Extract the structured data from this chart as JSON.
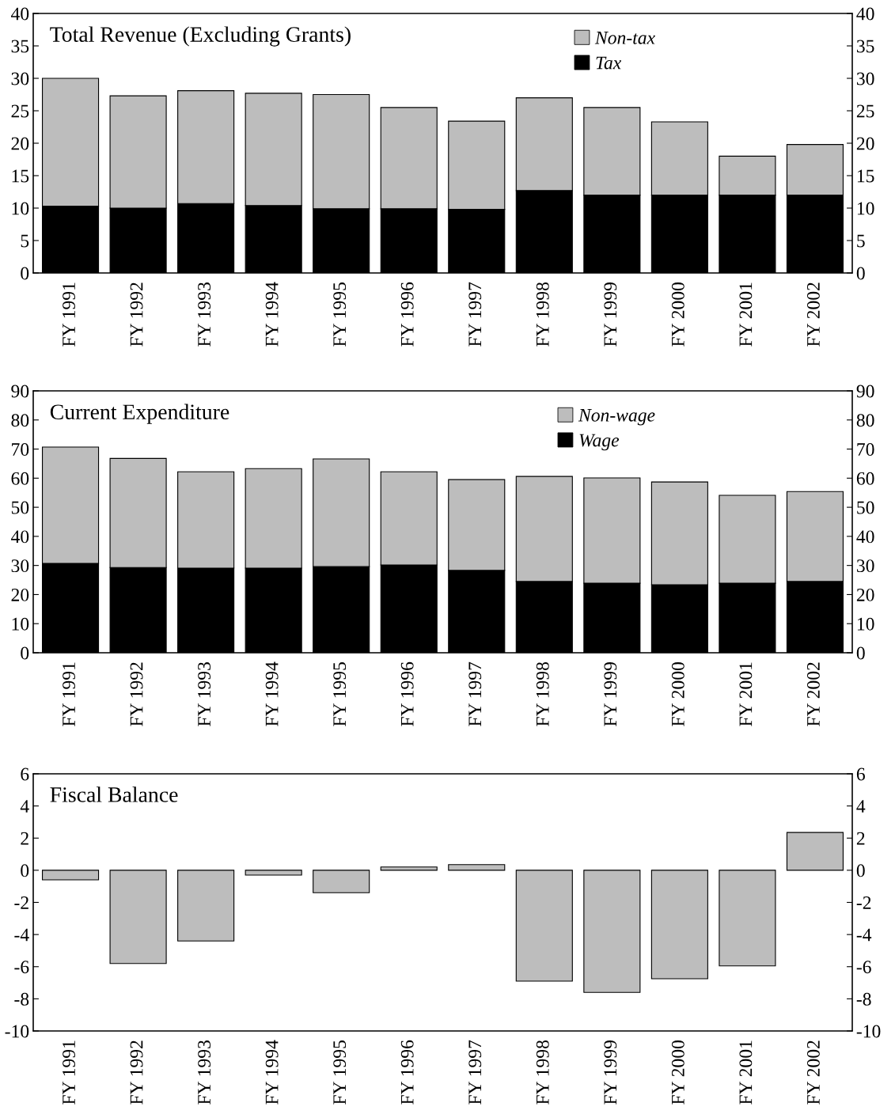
{
  "chart_data": [
    {
      "type": "bar",
      "title": "Total Revenue (Excluding Grants)",
      "stacked": true,
      "legend": "top right",
      "grid": false,
      "categories": [
        "FY 1991",
        "FY 1992",
        "FY 1993",
        "FY 1994",
        "FY 1995",
        "FY 1996",
        "FY 1997",
        "FY 1998",
        "FY 1999",
        "FY 2000",
        "FY 2001",
        "FY 2002"
      ],
      "series": [
        {
          "name": "Tax",
          "color": "#000000",
          "values": [
            10.3,
            10.0,
            10.7,
            10.4,
            9.9,
            9.9,
            9.8,
            12.7,
            12.0,
            12.0,
            12.0,
            12.0
          ]
        },
        {
          "name": "Non-tax",
          "color": "#bdbdbd",
          "values": [
            19.7,
            17.3,
            17.4,
            17.3,
            17.6,
            15.6,
            13.6,
            14.3,
            13.5,
            11.3,
            6.0,
            7.8
          ]
        }
      ],
      "ylim": [
        0,
        40
      ],
      "yticks": [
        0,
        5,
        10,
        15,
        20,
        25,
        30,
        35,
        40
      ],
      "y2lim": [
        0,
        40
      ],
      "y2ticks": [
        0,
        5,
        10,
        15,
        20,
        25,
        30,
        35,
        40
      ]
    },
    {
      "type": "bar",
      "title": "Current Expenditure",
      "stacked": true,
      "legend": "top right",
      "grid": false,
      "categories": [
        "FY 1991",
        "FY 1992",
        "FY 1993",
        "FY 1994",
        "FY 1995",
        "FY 1996",
        "FY 1997",
        "FY 1998",
        "FY 1999",
        "FY 2000",
        "FY 2001",
        "FY 2002"
      ],
      "series": [
        {
          "name": "Wage",
          "color": "#000000",
          "values": [
            30.7,
            29.3,
            29.1,
            29.1,
            29.6,
            30.2,
            28.3,
            24.5,
            23.9,
            23.4,
            23.9,
            24.5
          ]
        },
        {
          "name": "Non-wage",
          "color": "#bdbdbd",
          "values": [
            40.0,
            37.5,
            33.1,
            34.2,
            37.0,
            32.0,
            31.2,
            36.1,
            36.2,
            35.3,
            30.2,
            30.9
          ]
        }
      ],
      "ylim": [
        0,
        90
      ],
      "yticks": [
        0,
        10,
        20,
        30,
        40,
        50,
        60,
        70,
        80,
        90
      ],
      "y2lim": [
        0,
        90
      ],
      "y2ticks": [
        0,
        10,
        20,
        30,
        40,
        50,
        60,
        70,
        80,
        90
      ]
    },
    {
      "type": "bar",
      "title": "Fiscal Balance",
      "grid": false,
      "categories": [
        "FY 1991",
        "FY 1992",
        "FY 1993",
        "FY 1994",
        "FY 1995",
        "FY 1996",
        "FY 1997",
        "FY 1998",
        "FY 1999",
        "FY 2000",
        "FY 2001",
        "FY 2002"
      ],
      "series": [
        {
          "color": "#bdbdbd",
          "values": [
            -0.6,
            -5.8,
            -4.4,
            -0.3,
            -1.4,
            0.2,
            0.35,
            -6.9,
            -7.6,
            -6.75,
            -5.95,
            2.35
          ]
        }
      ],
      "ylim": [
        -10,
        6
      ],
      "yticks": [
        -10,
        -8,
        -6,
        -4,
        -2,
        0,
        2,
        4,
        6
      ],
      "y2lim": [
        -10,
        6
      ],
      "y2ticks": [
        -10,
        -8,
        -6,
        -4,
        -2,
        0,
        2,
        4,
        6
      ]
    }
  ]
}
